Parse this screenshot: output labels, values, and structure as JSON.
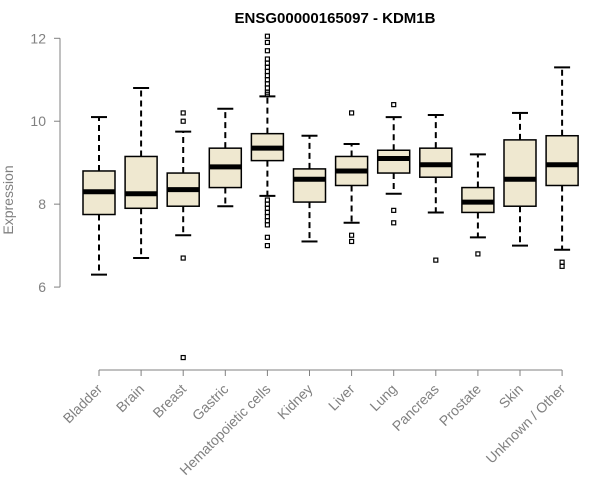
{
  "chart_data": {
    "type": "boxplot",
    "title": "ENSG00000165097 - KDM1B",
    "xlabel": "",
    "ylabel": "Expression",
    "ylim": [
      4.0,
      12.2
    ],
    "yticks": [
      6,
      8,
      10,
      12
    ],
    "grid": false,
    "legend": "none",
    "colors": {
      "box_fill": "#efe8d0",
      "stroke": "#000000",
      "axis": "#808080"
    },
    "categories": [
      "Bladder",
      "Brain",
      "Breast",
      "Gastric",
      "Hematopoietic cells",
      "Kidney",
      "Liver",
      "Lung",
      "Pancreas",
      "Prostate",
      "Skin",
      "Unknown / Other"
    ],
    "boxes": [
      {
        "category": "Bladder",
        "whisker_low": 6.3,
        "q1": 7.75,
        "median": 8.3,
        "q3": 8.8,
        "whisker_high": 10.1,
        "outliers": []
      },
      {
        "category": "Brain",
        "whisker_low": 6.7,
        "q1": 7.9,
        "median": 8.25,
        "q3": 9.15,
        "whisker_high": 10.8,
        "outliers": []
      },
      {
        "category": "Breast",
        "whisker_low": 7.25,
        "q1": 7.95,
        "median": 8.35,
        "q3": 8.75,
        "whisker_high": 9.75,
        "outliers": [
          10.2,
          10.0,
          6.7,
          4.3
        ]
      },
      {
        "category": "Gastric",
        "whisker_low": 7.95,
        "q1": 8.4,
        "median": 8.9,
        "q3": 9.35,
        "whisker_high": 10.3,
        "outliers": []
      },
      {
        "category": "Hematopoietic cells",
        "whisker_low": 8.2,
        "q1": 9.05,
        "median": 9.35,
        "q3": 9.7,
        "whisker_high": 10.6,
        "outliers": [
          12.05,
          11.9,
          11.7,
          11.5,
          11.4,
          11.3,
          11.2,
          11.1,
          11.0,
          10.9,
          10.8,
          10.7,
          10.65,
          8.1,
          8.0,
          7.9,
          7.8,
          7.7,
          7.6,
          7.5,
          7.2,
          7.0
        ]
      },
      {
        "category": "Kidney",
        "whisker_low": 7.1,
        "q1": 8.05,
        "median": 8.6,
        "q3": 8.85,
        "whisker_high": 9.65,
        "outliers": []
      },
      {
        "category": "Liver",
        "whisker_low": 7.55,
        "q1": 8.45,
        "median": 8.8,
        "q3": 9.15,
        "whisker_high": 9.45,
        "outliers": [
          10.2,
          7.25,
          7.1
        ]
      },
      {
        "category": "Lung",
        "whisker_low": 8.25,
        "q1": 8.75,
        "median": 9.1,
        "q3": 9.3,
        "whisker_high": 10.1,
        "outliers": [
          10.4,
          7.85,
          7.55
        ]
      },
      {
        "category": "Pancreas",
        "whisker_low": 7.8,
        "q1": 8.65,
        "median": 8.95,
        "q3": 9.35,
        "whisker_high": 10.15,
        "outliers": [
          6.65
        ]
      },
      {
        "category": "Prostate",
        "whisker_low": 7.2,
        "q1": 7.8,
        "median": 8.05,
        "q3": 8.4,
        "whisker_high": 9.2,
        "outliers": [
          6.8
        ]
      },
      {
        "category": "Skin",
        "whisker_low": 7.0,
        "q1": 7.95,
        "median": 8.6,
        "q3": 9.55,
        "whisker_high": 10.2,
        "outliers": []
      },
      {
        "category": "Unknown / Other",
        "whisker_low": 6.9,
        "q1": 8.45,
        "median": 8.95,
        "q3": 9.65,
        "whisker_high": 11.3,
        "outliers": [
          6.6,
          6.5
        ]
      }
    ]
  }
}
